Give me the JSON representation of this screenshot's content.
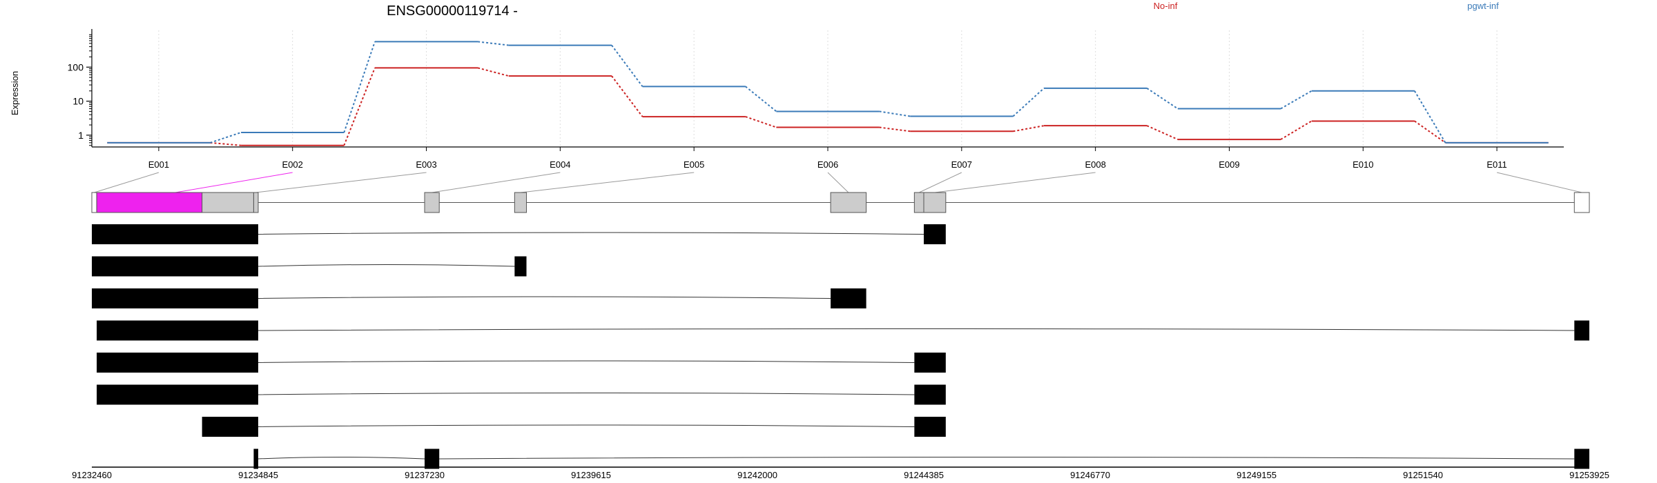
{
  "chart_data": {
    "type": "line",
    "title": "ENSG00000119714 -",
    "xlabel": "",
    "ylabel": "Expression",
    "yscale": "log",
    "yticks": [
      {
        "value": 1,
        "label": "1"
      },
      {
        "value": 10,
        "label": "10"
      },
      {
        "value": 100,
        "label": "100"
      }
    ],
    "categories": [
      "E001",
      "E002",
      "E003",
      "E004",
      "E005",
      "E006",
      "E007",
      "E008",
      "E009",
      "E010",
      "E011"
    ],
    "series": [
      {
        "name": "No-inf",
        "color": "#cc2222",
        "values": [
          0.6,
          0.5,
          95,
          55,
          3.5,
          1.7,
          1.3,
          1.9,
          0.75,
          2.6,
          0.6
        ]
      },
      {
        "name": "pgwt-inf",
        "color": "#3a7ab8",
        "values": [
          0.6,
          1.2,
          560,
          440,
          27,
          5,
          3.6,
          24,
          6,
          20,
          0.6
        ]
      }
    ],
    "legend_placement": "top-right",
    "grid": "vertical-dotted",
    "genomic_axis": {
      "ticks": [
        "91232460",
        "91234845",
        "91237230",
        "91239615",
        "91242000",
        "91244385",
        "91246770",
        "91249155",
        "91251540",
        "91253925"
      ],
      "range": [
        91232460,
        91253925
      ]
    },
    "gene_model": {
      "exon_boxes": [
        {
          "exon": "E001",
          "start": 91232460,
          "end": 91232530,
          "fill": "#ffffff"
        },
        {
          "exon": "E002",
          "start": 91232530,
          "end": 91234780,
          "fill": "#cccccc",
          "highlight_start": 91232530,
          "highlight_end": 91234040,
          "highlight_fill": "#ee22ee"
        },
        {
          "exon": "E003",
          "start": 91234780,
          "end": 91234845,
          "fill": "#cccccc"
        },
        {
          "exon": "E004",
          "start": 91237230,
          "end": 91237440,
          "fill": "#cccccc"
        },
        {
          "exon": "E005",
          "start": 91238520,
          "end": 91238690,
          "fill": "#cccccc"
        },
        {
          "exon": "E006",
          "start": 91243050,
          "end": 91243560,
          "fill": "#cccccc"
        },
        {
          "exon": "E007",
          "start": 91244250,
          "end": 91244385,
          "fill": "#cccccc"
        },
        {
          "exon": "E008",
          "start": 91244385,
          "end": 91244700,
          "fill": "#cccccc"
        },
        {
          "exon": "E011",
          "start": 91253710,
          "end": 91253925,
          "fill": "#ffffff"
        }
      ],
      "transcripts": [
        {
          "exons": [
            [
              91232460,
              91234845
            ],
            [
              91244385,
              91244700
            ]
          ]
        },
        {
          "exons": [
            [
              91232460,
              91234845
            ],
            [
              91238520,
              91238690
            ]
          ]
        },
        {
          "exons": [
            [
              91232460,
              91234845
            ],
            [
              91243050,
              91243560
            ]
          ]
        },
        {
          "exons": [
            [
              91232530,
              91234845
            ],
            [
              91253710,
              91253925
            ]
          ]
        },
        {
          "exons": [
            [
              91232530,
              91234845
            ],
            [
              91244250,
              91244700
            ]
          ]
        },
        {
          "exons": [
            [
              91232530,
              91234845
            ],
            [
              91244250,
              91244700
            ]
          ]
        },
        {
          "exons": [
            [
              91234040,
              91234845
            ],
            [
              91244250,
              91244700
            ]
          ]
        },
        {
          "exons": [
            [
              91234780,
              91234845
            ],
            [
              91237230,
              91237440
            ],
            [
              91253710,
              91253925
            ]
          ]
        }
      ]
    }
  }
}
